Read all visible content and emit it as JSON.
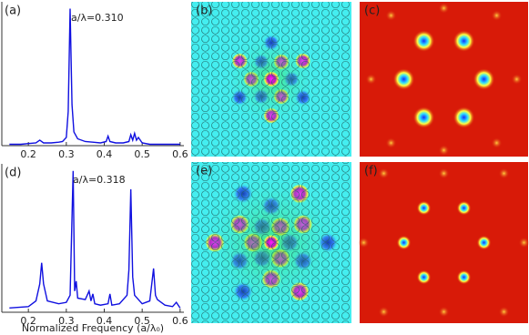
{
  "chart_data": [
    {
      "type": "line",
      "panel_label": "(a)",
      "annotation": "a/λ=0.310",
      "x": [
        0.15,
        0.18,
        0.2,
        0.22,
        0.23,
        0.24,
        0.26,
        0.28,
        0.29,
        0.3,
        0.305,
        0.31,
        0.315,
        0.32,
        0.33,
        0.35,
        0.37,
        0.39,
        0.405,
        0.41,
        0.415,
        0.43,
        0.45,
        0.465,
        0.47,
        0.475,
        0.48,
        0.485,
        0.49,
        0.5,
        0.52,
        0.55,
        0.58,
        0.6
      ],
      "series": [
        {
          "color": "#1010e0",
          "values": [
            0.01,
            0.01,
            0.015,
            0.02,
            0.04,
            0.02,
            0.02,
            0.025,
            0.03,
            0.06,
            0.25,
            1.0,
            0.3,
            0.1,
            0.05,
            0.03,
            0.025,
            0.02,
            0.03,
            0.07,
            0.03,
            0.02,
            0.02,
            0.03,
            0.08,
            0.04,
            0.09,
            0.04,
            0.06,
            0.02,
            0.01,
            0.01,
            0.01,
            0.01
          ]
        }
      ],
      "xlim": [
        0.13,
        0.61
      ],
      "xticks": [
        0.2,
        0.3,
        0.4,
        0.5,
        0.6
      ],
      "ylim": [
        0,
        1.05
      ]
    },
    {
      "type": "line",
      "panel_label": "(d)",
      "annotation": "a/λ=0.318",
      "xlabel": "Normalized Frequency (a/λ₀)",
      "x": [
        0.15,
        0.2,
        0.22,
        0.23,
        0.235,
        0.24,
        0.25,
        0.28,
        0.3,
        0.31,
        0.318,
        0.322,
        0.326,
        0.33,
        0.35,
        0.36,
        0.365,
        0.37,
        0.375,
        0.39,
        0.41,
        0.415,
        0.42,
        0.44,
        0.46,
        0.465,
        0.47,
        0.475,
        0.48,
        0.5,
        0.52,
        0.53,
        0.535,
        0.54,
        0.56,
        0.58,
        0.59,
        0.6
      ],
      "series": [
        {
          "color": "#1010e0",
          "values": [
            0.03,
            0.04,
            0.08,
            0.2,
            0.35,
            0.2,
            0.08,
            0.06,
            0.07,
            0.12,
            1.0,
            0.15,
            0.22,
            0.1,
            0.09,
            0.15,
            0.08,
            0.13,
            0.06,
            0.05,
            0.06,
            0.13,
            0.05,
            0.06,
            0.12,
            0.3,
            0.87,
            0.25,
            0.12,
            0.06,
            0.08,
            0.31,
            0.12,
            0.09,
            0.05,
            0.04,
            0.07,
            0.03
          ]
        }
      ],
      "xlim": [
        0.13,
        0.61
      ],
      "xticks": [
        0.2,
        0.3,
        0.4,
        0.5,
        0.6
      ],
      "ylim": [
        0,
        1.05
      ]
    }
  ],
  "image_panels": [
    {
      "label": "(b)"
    },
    {
      "label": "(c)"
    },
    {
      "label": "(e)"
    },
    {
      "label": "(f)"
    }
  ]
}
